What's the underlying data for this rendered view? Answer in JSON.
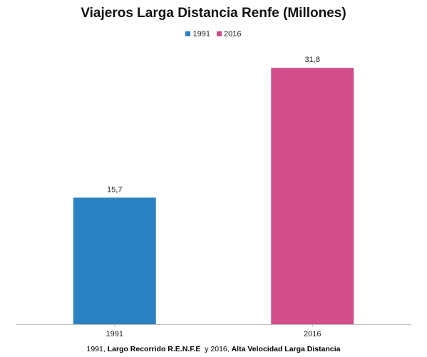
{
  "chart_data": {
    "type": "bar",
    "title": "Viajeros Larga Distancia Renfe (Millones)",
    "categories": [
      "1991",
      "2016"
    ],
    "series": [
      {
        "name": "1991",
        "color": "#2A82C5",
        "values": [
          15.7,
          null
        ]
      },
      {
        "name": "2016",
        "color": "#D14E8A",
        "values": [
          null,
          31.8
        ]
      }
    ],
    "data_labels": [
      "15,7",
      "31,8"
    ],
    "ylim": [
      0,
      35
    ],
    "grid": false,
    "legend_position": "top-center",
    "xlabel": "",
    "ylabel": ""
  },
  "footnote": {
    "part1": "1991, ",
    "part2": "Largo Recorrido R.E.N.F.E",
    "part3": "  y 2016, ",
    "part4": "Alta Velocidad Larga Distancia"
  }
}
